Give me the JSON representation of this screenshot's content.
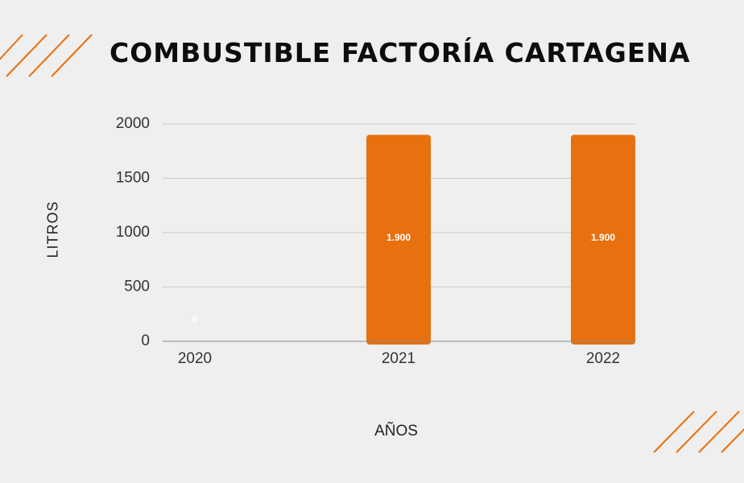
{
  "colors": {
    "accent": "#e8700e",
    "background": "#efefef"
  },
  "chart_data": {
    "type": "bar",
    "title": "COMBUSTIBLE FACTORÍA CARTAGENA",
    "xlabel": "AÑOS",
    "ylabel": "LITROS",
    "categories": [
      "2020",
      "2021",
      "2022"
    ],
    "values": [
      0,
      1900,
      1900
    ],
    "data_labels": [
      "0",
      "1.900",
      "1.900"
    ],
    "yticks": [
      0,
      500,
      1000,
      1500,
      2000
    ],
    "ytick_labels": [
      "0",
      "500",
      "1000",
      "1500",
      "2000"
    ],
    "ylim": [
      0,
      2000
    ],
    "grid": true,
    "legend": "none",
    "bar_color": "#e8700e"
  }
}
